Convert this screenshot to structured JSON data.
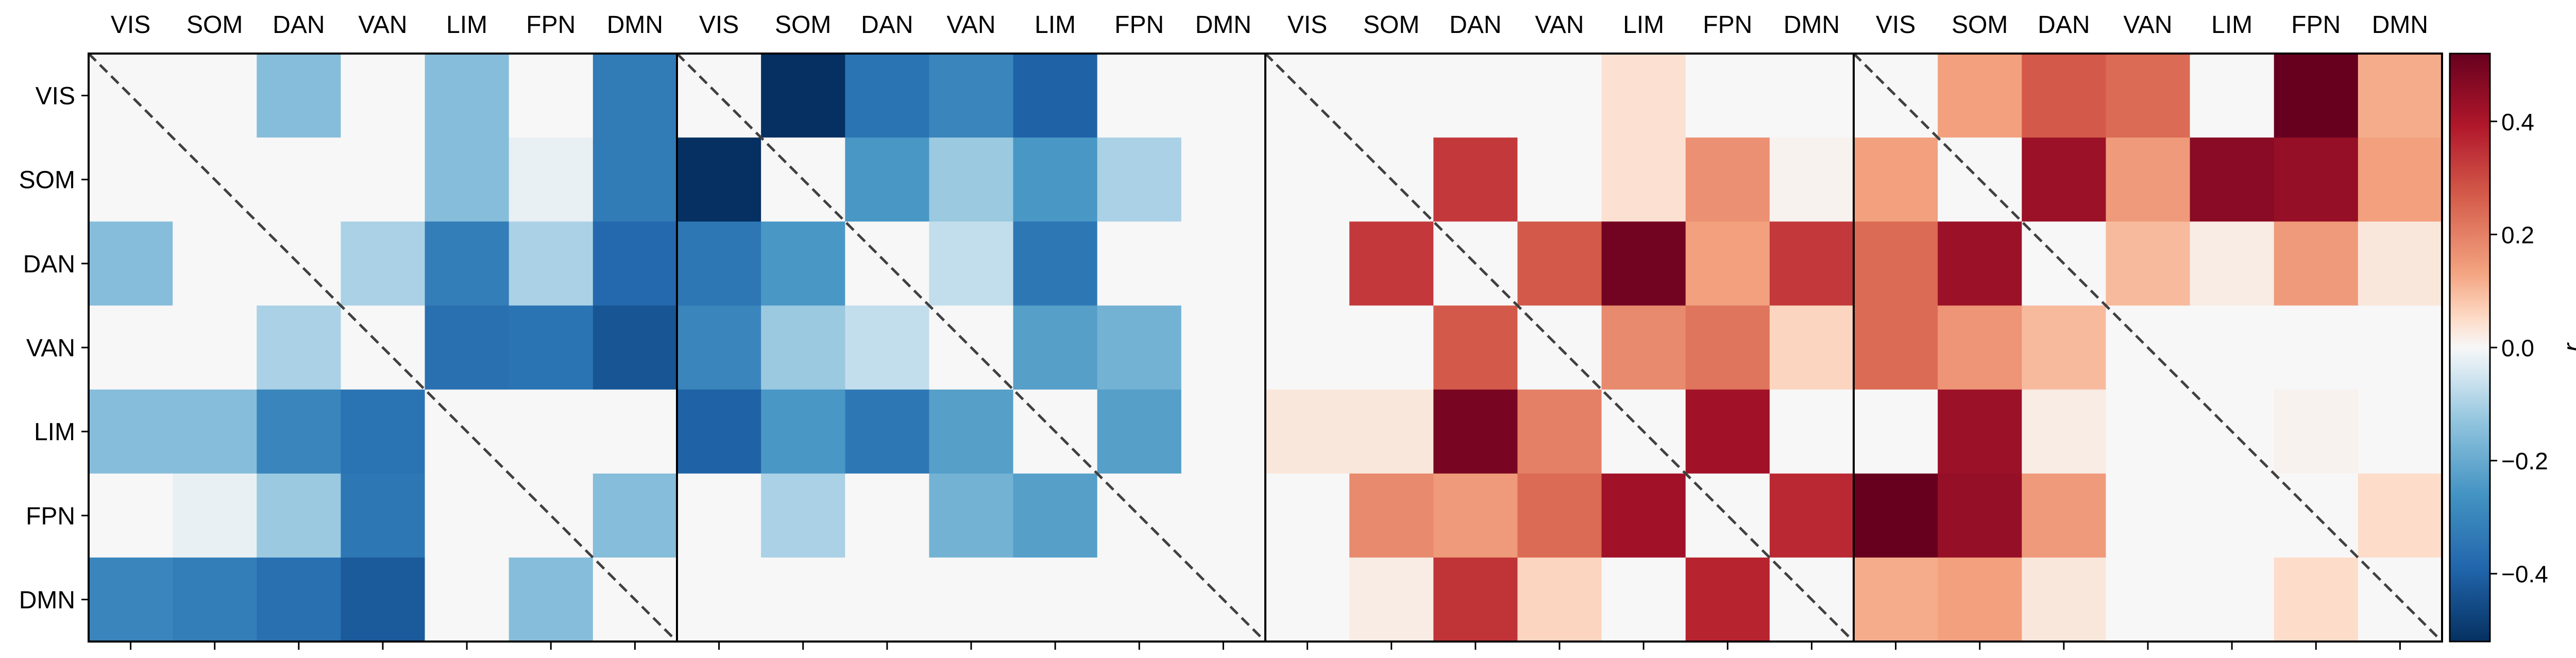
{
  "chart_data": {
    "type": "heatmap",
    "labels": [
      "VIS",
      "SOM",
      "DAN",
      "VAN",
      "LIM",
      "FPN",
      "DMN"
    ],
    "colorbar": {
      "label": "r",
      "range": [
        -0.52,
        0.52
      ],
      "ticks": [
        -0.4,
        -0.2,
        0.0,
        0.2,
        0.4
      ],
      "tick_labels": [
        "−0.4",
        "−0.2",
        "0.0",
        "0.2",
        "0.4"
      ],
      "colormap": "RdBu_r"
    },
    "diagonal_line": "dashed",
    "panels": [
      {
        "matrix": [
          [
            0.0,
            0.0,
            -0.15,
            0.0,
            -0.15,
            0.0,
            -0.33
          ],
          [
            0.0,
            0.0,
            0.0,
            0.0,
            -0.15,
            -0.02,
            -0.33
          ],
          [
            -0.15,
            0.0,
            0.0,
            -0.1,
            -0.32,
            -0.1,
            -0.38
          ],
          [
            0.0,
            0.0,
            -0.1,
            0.0,
            -0.36,
            -0.35,
            -0.43
          ],
          [
            -0.15,
            -0.15,
            -0.3,
            -0.35,
            0.0,
            0.0,
            0.0
          ],
          [
            0.0,
            -0.02,
            -0.12,
            -0.34,
            0.0,
            0.0,
            -0.15
          ],
          [
            -0.3,
            -0.32,
            -0.36,
            -0.42,
            0.0,
            -0.15,
            0.0
          ]
        ]
      },
      {
        "matrix": [
          [
            0.0,
            -0.52,
            -0.35,
            -0.3,
            -0.4,
            0.0,
            0.0
          ],
          [
            -0.52,
            0.0,
            -0.25,
            -0.12,
            -0.25,
            -0.1,
            0.0
          ],
          [
            -0.34,
            -0.25,
            0.0,
            -0.07,
            -0.34,
            0.0,
            0.0
          ],
          [
            -0.3,
            -0.12,
            -0.07,
            0.0,
            -0.23,
            -0.18,
            0.0
          ],
          [
            -0.4,
            -0.25,
            -0.34,
            -0.23,
            0.0,
            -0.23,
            0.0
          ],
          [
            0.0,
            -0.1,
            0.0,
            -0.18,
            -0.23,
            0.0,
            0.0
          ],
          [
            0.0,
            0.0,
            0.0,
            0.0,
            0.0,
            0.0,
            0.0
          ]
        ]
      },
      {
        "matrix": [
          [
            0.0,
            0.0,
            0.0,
            0.0,
            0.04,
            0.0,
            0.0
          ],
          [
            0.0,
            0.0,
            0.33,
            0.0,
            0.04,
            0.17,
            0.01
          ],
          [
            0.0,
            0.33,
            0.0,
            0.27,
            0.5,
            0.14,
            0.33
          ],
          [
            0.0,
            0.0,
            0.27,
            0.0,
            0.18,
            0.22,
            0.06
          ],
          [
            0.03,
            0.03,
            0.49,
            0.2,
            0.0,
            0.42,
            0.0
          ],
          [
            0.0,
            0.18,
            0.15,
            0.24,
            0.42,
            0.0,
            0.36
          ],
          [
            0.0,
            0.02,
            0.34,
            0.06,
            0.0,
            0.37,
            0.0
          ]
        ]
      },
      {
        "matrix": [
          [
            0.0,
            0.14,
            0.27,
            0.24,
            0.0,
            0.52,
            0.12
          ],
          [
            0.14,
            0.0,
            0.43,
            0.15,
            0.46,
            0.44,
            0.14
          ],
          [
            0.24,
            0.43,
            0.0,
            0.1,
            0.02,
            0.15,
            0.03
          ],
          [
            0.24,
            0.16,
            0.1,
            0.0,
            0.0,
            0.0,
            0.0
          ],
          [
            0.0,
            0.43,
            0.02,
            0.0,
            0.0,
            0.01,
            0.0
          ],
          [
            0.52,
            0.44,
            0.15,
            0.0,
            0.0,
            0.0,
            0.05
          ],
          [
            0.12,
            0.14,
            0.03,
            0.0,
            0.0,
            0.05,
            0.0
          ]
        ]
      }
    ]
  }
}
